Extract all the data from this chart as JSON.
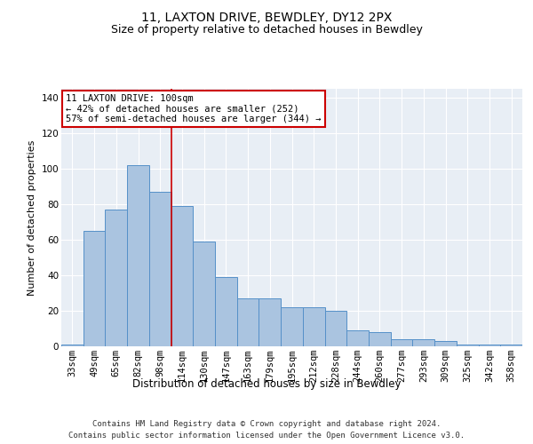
{
  "title": "11, LAXTON DRIVE, BEWDLEY, DY12 2PX",
  "subtitle": "Size of property relative to detached houses in Bewdley",
  "xlabel": "Distribution of detached houses by size in Bewdley",
  "ylabel": "Number of detached properties",
  "categories": [
    "33sqm",
    "49sqm",
    "65sqm",
    "82sqm",
    "98sqm",
    "114sqm",
    "130sqm",
    "147sqm",
    "163sqm",
    "179sqm",
    "195sqm",
    "212sqm",
    "228sqm",
    "244sqm",
    "260sqm",
    "277sqm",
    "293sqm",
    "309sqm",
    "325sqm",
    "342sqm",
    "358sqm"
  ],
  "values": [
    1,
    65,
    77,
    102,
    87,
    79,
    59,
    39,
    27,
    27,
    22,
    22,
    20,
    9,
    8,
    4,
    4,
    3,
    1,
    1,
    1
  ],
  "bar_color": "#aac4e0",
  "bar_edge_color": "#5590c8",
  "highlight_index": 4,
  "highlight_line_color": "#cc0000",
  "annotation_text": "11 LAXTON DRIVE: 100sqm\n← 42% of detached houses are smaller (252)\n57% of semi-detached houses are larger (344) →",
  "annotation_box_color": "#ffffff",
  "annotation_box_edge_color": "#cc0000",
  "ylim": [
    0,
    145
  ],
  "yticks": [
    0,
    20,
    40,
    60,
    80,
    100,
    120,
    140
  ],
  "background_color": "#e8eef5",
  "grid_color": "#ffffff",
  "footer": "Contains HM Land Registry data © Crown copyright and database right 2024.\nContains public sector information licensed under the Open Government Licence v3.0.",
  "title_fontsize": 10,
  "subtitle_fontsize": 9,
  "xlabel_fontsize": 8.5,
  "ylabel_fontsize": 8,
  "tick_fontsize": 7.5,
  "annotation_fontsize": 7.5,
  "footer_fontsize": 6.5
}
